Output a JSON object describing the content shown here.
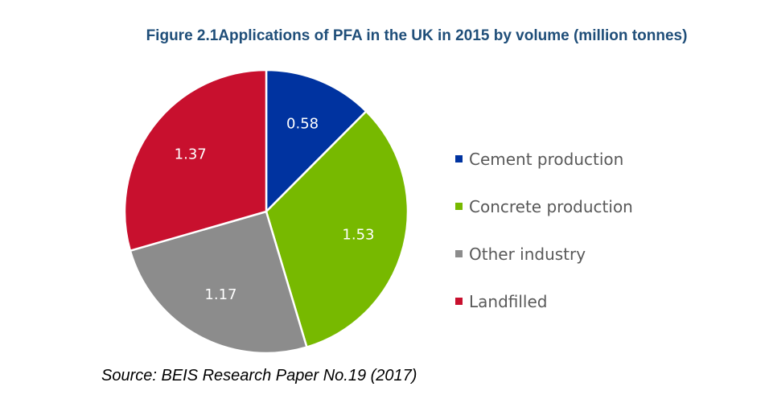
{
  "figure": {
    "title": "Figure 2.1Applications of PFA in the UK in 2015 by volume (million tonnes)",
    "source": "Source: BEIS Research Paper No.19 (2017)"
  },
  "chart_data": {
    "type": "pie",
    "title": "Figure 2.1Applications of PFA in the UK in 2015 by volume (million tonnes)",
    "start_angle": "12 o'clock",
    "direction": "clockwise",
    "legend_position": "right",
    "categories": [
      "Cement production",
      "Concrete production",
      "Other industry",
      "Landfilled"
    ],
    "values": [
      0.58,
      1.53,
      1.17,
      1.37
    ],
    "labels": [
      "0.58",
      "1.53",
      "1.17",
      "1.37"
    ],
    "colors": [
      "#0033a0",
      "#77b900",
      "#8c8c8c",
      "#c8102e"
    ]
  }
}
